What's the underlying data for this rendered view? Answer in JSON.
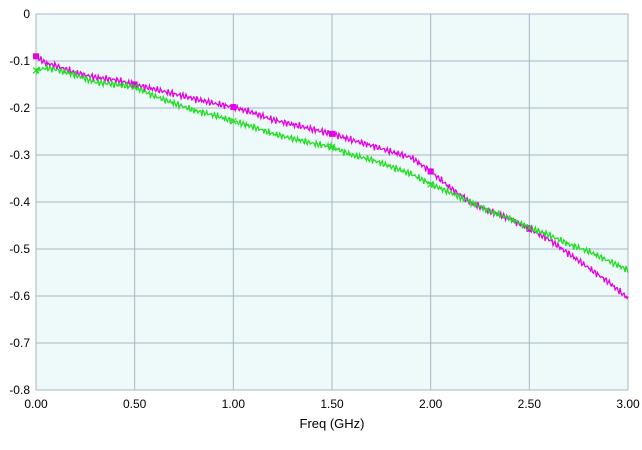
{
  "chart_data": {
    "type": "line",
    "xlabel": "Freq (GHz)",
    "ylabel": "",
    "xlim": [
      0.0,
      3.0
    ],
    "ylim": [
      -0.8,
      0.0
    ],
    "xticks": [
      "0.00",
      "0.50",
      "1.00",
      "1.50",
      "2.00",
      "2.50",
      "3.00"
    ],
    "yticks": [
      "0",
      "-0.1",
      "-0.2",
      "-0.3",
      "-0.4",
      "-0.5",
      "-0.6",
      "-0.7",
      "-0.8"
    ],
    "grid": true,
    "colors": {
      "plot_background": "#eefafa",
      "grid": "#a9b6c4"
    },
    "series": [
      {
        "color": "#e600e6",
        "marker": "square",
        "x": [
          0.0,
          0.05,
          0.1,
          0.2,
          0.3,
          0.4,
          0.5,
          0.6,
          0.7,
          0.8,
          0.9,
          1.0,
          1.1,
          1.2,
          1.3,
          1.4,
          1.5,
          1.6,
          1.7,
          1.8,
          1.9,
          2.0,
          2.1,
          2.2,
          2.3,
          2.4,
          2.5,
          2.6,
          2.7,
          2.8,
          2.9,
          3.0
        ],
        "values": [
          -0.09,
          -0.105,
          -0.11,
          -0.125,
          -0.135,
          -0.14,
          -0.15,
          -0.16,
          -0.17,
          -0.18,
          -0.19,
          -0.198,
          -0.21,
          -0.225,
          -0.235,
          -0.245,
          -0.255,
          -0.268,
          -0.28,
          -0.293,
          -0.305,
          -0.335,
          -0.37,
          -0.4,
          -0.42,
          -0.435,
          -0.457,
          -0.48,
          -0.51,
          -0.54,
          -0.57,
          -0.605
        ],
        "marker_x": [
          0.0,
          0.5,
          1.0,
          1.5,
          2.0,
          2.5
        ]
      },
      {
        "color": "#22dd22",
        "marker": "x",
        "x": [
          0.0,
          0.05,
          0.1,
          0.2,
          0.3,
          0.4,
          0.5,
          0.6,
          0.7,
          0.8,
          0.9,
          1.0,
          1.1,
          1.2,
          1.3,
          1.4,
          1.5,
          1.6,
          1.7,
          1.8,
          1.9,
          2.0,
          2.1,
          2.2,
          2.3,
          2.4,
          2.5,
          2.6,
          2.7,
          2.8,
          2.9,
          3.0
        ],
        "values": [
          -0.12,
          -0.115,
          -0.118,
          -0.13,
          -0.145,
          -0.15,
          -0.155,
          -0.175,
          -0.19,
          -0.205,
          -0.215,
          -0.228,
          -0.24,
          -0.255,
          -0.265,
          -0.275,
          -0.283,
          -0.3,
          -0.31,
          -0.325,
          -0.34,
          -0.362,
          -0.38,
          -0.4,
          -0.42,
          -0.435,
          -0.455,
          -0.47,
          -0.49,
          -0.505,
          -0.525,
          -0.545
        ],
        "marker_x": [
          0.0,
          0.5,
          1.0,
          1.5,
          2.0,
          2.5
        ]
      }
    ]
  }
}
